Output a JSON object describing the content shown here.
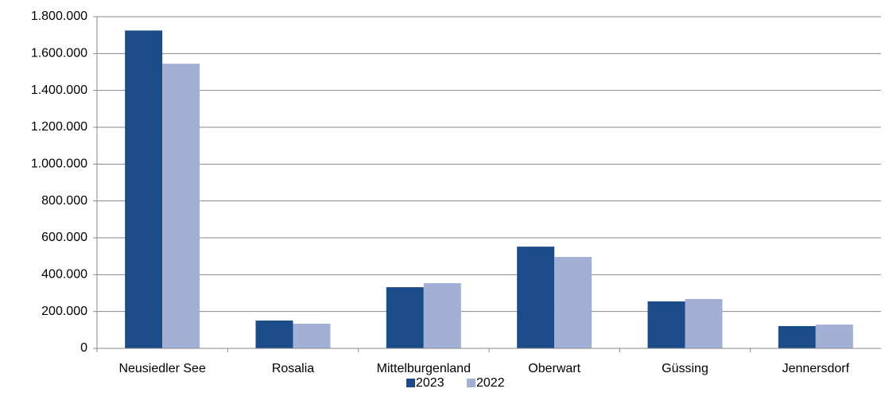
{
  "chart_data": {
    "type": "bar",
    "categories": [
      "Neusiedler See",
      "Rosalia",
      "Mittelburgenland",
      "Oberwart",
      "Güssing",
      "Jennersdorf"
    ],
    "series": [
      {
        "name": "2023",
        "color": "#1c4b8a",
        "values": [
          1725000,
          151000,
          332000,
          552000,
          255000,
          121000
        ]
      },
      {
        "name": "2022",
        "color": "#a3b0d5",
        "values": [
          1545000,
          134000,
          354000,
          496000,
          268000,
          129000
        ]
      }
    ],
    "ylim": [
      0,
      1800000
    ],
    "yticks": [
      0,
      {
        "value": 200000,
        "label": "200.000"
      },
      {
        "value": 400000,
        "label": "400.000"
      },
      {
        "value": 600000,
        "label": "600.000"
      },
      {
        "value": 800000,
        "label": "800.000"
      },
      {
        "value": 1000000,
        "label": "1.000.000"
      },
      {
        "value": 1200000,
        "label": "1.200.000"
      },
      {
        "value": 1400000,
        "label": "1.400.000"
      },
      {
        "value": 1600000,
        "label": "1.600.000"
      },
      {
        "value": 1800000,
        "label": "1.800.000"
      }
    ],
    "grid": true,
    "legend": "bottom"
  }
}
